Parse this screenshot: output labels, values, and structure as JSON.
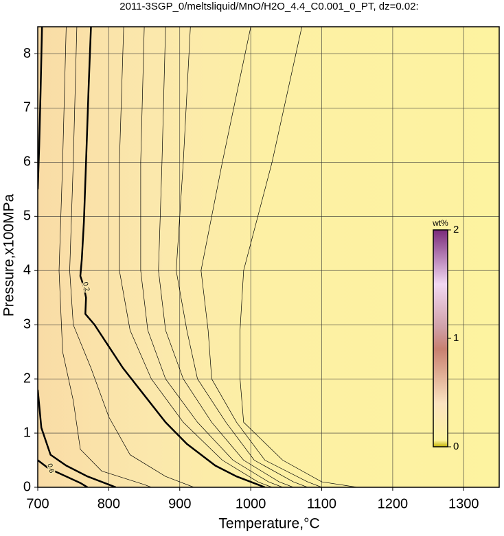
{
  "chart_data": {
    "type": "contour",
    "title": "2011-3SGP_0/meltsliquid/MnO/H2O_4.4_C0.001_0_PT, dz=0.02:",
    "x_label": "Temperature,°C",
    "y_label": "Pressure,x100MPa",
    "xlim": [
      700,
      1350
    ],
    "ylim": [
      0,
      8.5
    ],
    "xticks": [
      700,
      800,
      900,
      1000,
      1100,
      1200,
      1300
    ],
    "yticks": [
      0,
      1,
      2,
      3,
      4,
      5,
      6,
      7,
      8
    ],
    "grid": true,
    "colorbar": {
      "label": "wt%",
      "lim": [
        0,
        2
      ],
      "ticks": [
        0,
        1,
        2
      ]
    },
    "contours": [
      {
        "level": 0.2,
        "bold": true,
        "x": [
          775,
          772,
          768,
          765,
          762,
          760,
          765,
          768,
          767,
          780,
          800,
          820,
          850,
          880,
          910,
          950,
          980,
          1010,
          1020
        ],
        "y": [
          8.5,
          7.5,
          6,
          4.9,
          4.2,
          3.9,
          3.7,
          3.5,
          3.2,
          3.0,
          2.6,
          2.2,
          1.7,
          1.2,
          0.8,
          0.4,
          0.2,
          0.05,
          0
        ]
      },
      {
        "level": 0.4,
        "bold": true,
        "x": [
          706,
          704,
          702,
          700,
          null,
          700,
          705,
          718,
          740,
          770,
          800,
          810
        ],
        "y": [
          8.5,
          7.3,
          6.3,
          5.5,
          null,
          1.8,
          1.1,
          0.6,
          0.4,
          0.2,
          0.05,
          0
        ]
      },
      {
        "level": 0.6,
        "bold": true,
        "x": [
          700,
          715,
          740,
          760,
          770
        ],
        "y": [
          0.5,
          0.35,
          0.2,
          0.08,
          0
        ]
      },
      {
        "level": 0.3,
        "bold": false,
        "x": [
          740,
          735,
          730,
          735,
          750,
          760,
          790,
          850,
          860
        ],
        "y": [
          8.5,
          6,
          4,
          2.5,
          1.6,
          0.7,
          0.3,
          0.05,
          0
        ]
      },
      {
        "level": 0.26,
        "bold": false,
        "x": [
          755,
          750,
          745,
          750,
          775,
          800,
          830,
          880,
          920
        ],
        "y": [
          8.5,
          6,
          4,
          3,
          2.2,
          1.3,
          0.6,
          0.2,
          0
        ]
      },
      {
        "level": 0.18,
        "bold": false,
        "x": [
          821,
          815,
          815,
          830,
          860,
          905,
          960,
          1010,
          1030
        ],
        "y": [
          8.5,
          6,
          4,
          2.9,
          2,
          1.2,
          0.5,
          0.1,
          0
        ]
      },
      {
        "level": 0.16,
        "bold": false,
        "x": [
          850,
          845,
          845,
          855,
          880,
          925,
          975,
          1025,
          1045
        ],
        "y": [
          8.5,
          6,
          4,
          2.9,
          2,
          1.2,
          0.5,
          0.1,
          0
        ]
      },
      {
        "level": 0.14,
        "bold": false,
        "x": [
          880,
          875,
          870,
          880,
          905,
          945,
          990,
          1040,
          1060
        ],
        "y": [
          8.5,
          6,
          4,
          2.9,
          2,
          1.2,
          0.5,
          0.1,
          0
        ]
      },
      {
        "level": 0.12,
        "bold": false,
        "x": [
          915,
          905,
          895,
          910,
          925,
          965,
          1005,
          1060,
          1080
        ],
        "y": [
          8.5,
          6,
          4,
          2.9,
          2,
          1.2,
          0.5,
          0.1,
          0
        ]
      },
      {
        "level": 0.1,
        "bold": false,
        "x": [
          1000,
          960,
          930,
          940,
          945,
          980,
          1020,
          1080,
          1100
        ],
        "y": [
          8.5,
          6,
          4,
          2.9,
          2,
          1.2,
          0.5,
          0.1,
          0
        ]
      },
      {
        "level": 0.08,
        "bold": false,
        "x": [
          1072,
          1030,
          990,
          985,
          985,
          990,
          1045,
          1100,
          1150
        ],
        "y": [
          8.5,
          6,
          4,
          2.9,
          2,
          1.2,
          0.5,
          0.1,
          0
        ]
      }
    ]
  }
}
